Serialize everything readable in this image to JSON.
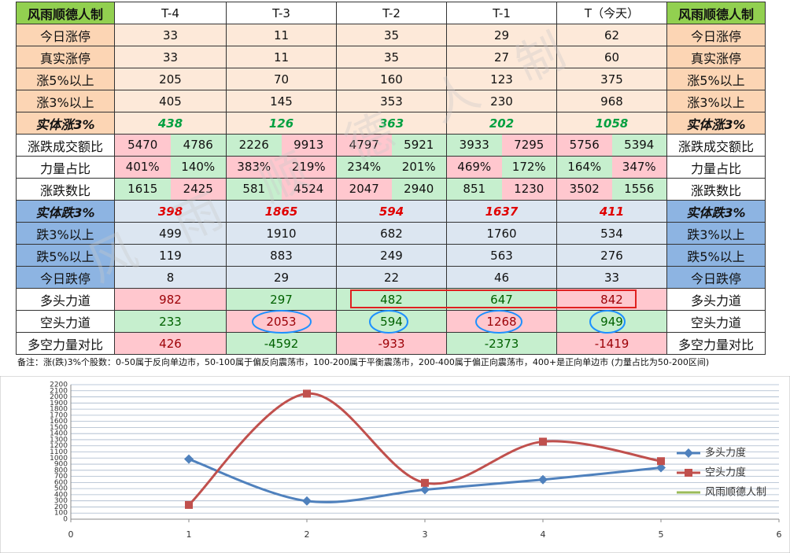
{
  "table": {
    "header": [
      "风雨顺德人制",
      "T-4",
      "T-3",
      "T-2",
      "T-1",
      "T（今天）",
      "风雨顺德人制"
    ],
    "rows": [
      {
        "label": "今日涨停",
        "cells": [
          "33",
          "11",
          "35",
          "29",
          "62"
        ]
      },
      {
        "label": "真实涨停",
        "cells": [
          "33",
          "11",
          "35",
          "27",
          "60"
        ]
      },
      {
        "label": "涨5%以上",
        "cells": [
          "205",
          "70",
          "160",
          "123",
          "375"
        ]
      },
      {
        "label": "涨3%以上",
        "cells": [
          "405",
          "145",
          "353",
          "230",
          "968"
        ]
      },
      {
        "label": "实体涨3%",
        "cells": [
          "438",
          "126",
          "363",
          "202",
          "1058"
        ]
      },
      {
        "label": "涨跌成交额比",
        "cells": [
          [
            "5470",
            "4786"
          ],
          [
            "2226",
            "9913"
          ],
          [
            "4797",
            "5921"
          ],
          [
            "3933",
            "7295"
          ],
          [
            "5756",
            "5394"
          ]
        ]
      },
      {
        "label": "力量占比",
        "cells": [
          [
            "401%",
            "140%"
          ],
          [
            "383%",
            "219%"
          ],
          [
            "234%",
            "201%"
          ],
          [
            "469%",
            "172%"
          ],
          [
            "164%",
            "347%"
          ]
        ]
      },
      {
        "label": "涨跌数比",
        "cells": [
          [
            "1615",
            "2425"
          ],
          [
            "581",
            "4524"
          ],
          [
            "2047",
            "2940"
          ],
          [
            "851",
            "1230"
          ],
          [
            "3502",
            "1556"
          ]
        ]
      },
      {
        "label": "实体跌3%",
        "cells": [
          "398",
          "1865",
          "594",
          "1637",
          "411"
        ]
      },
      {
        "label": "跌3%以上",
        "cells": [
          "499",
          "1910",
          "682",
          "1760",
          "534"
        ]
      },
      {
        "label": "跌5%以上",
        "cells": [
          "119",
          "883",
          "249",
          "563",
          "276"
        ]
      },
      {
        "label": "今日跌停",
        "cells": [
          "8",
          "29",
          "22",
          "46",
          "33"
        ]
      },
      {
        "label": "多头力道",
        "cells": [
          "982",
          "297",
          "482",
          "647",
          "842"
        ]
      },
      {
        "label": "空头力道",
        "cells": [
          "233",
          "2053",
          "594",
          "1268",
          "949"
        ]
      },
      {
        "label": "多空力量对比",
        "cells": [
          "426",
          "-4592",
          "-933",
          "-2373",
          "-1419"
        ]
      }
    ]
  },
  "note": "备注：涨(跌)3%个股数：0-50属于反向单边市，50-100属于偏反向震荡市，100-200属于平衡震荡市，200-400属于偏正向震荡市，400+是正向单边市 (力量占比为50-200区间)",
  "watermark": "风雨顺德人制",
  "chart_data": {
    "type": "line",
    "x": [
      1,
      2,
      3,
      4,
      5
    ],
    "series": [
      {
        "name": "多头力度",
        "color": "#4f81bd",
        "marker": "diamond",
        "values": [
          982,
          297,
          482,
          647,
          842
        ]
      },
      {
        "name": "空头力度",
        "color": "#c0504d",
        "marker": "square",
        "values": [
          233,
          2053,
          594,
          1268,
          949
        ]
      },
      {
        "name": "风雨顺德人制",
        "color": "#9bbb59",
        "marker": "none",
        "values": [
          null,
          null,
          null,
          null,
          null
        ]
      }
    ],
    "xlim": [
      0,
      6
    ],
    "xticks": [
      0,
      1,
      2,
      3,
      4,
      5,
      6
    ],
    "ylim": [
      0,
      2200
    ],
    "yticks": [
      0,
      100,
      200,
      300,
      400,
      500,
      600,
      700,
      800,
      900,
      1000,
      1100,
      1200,
      1300,
      1400,
      1500,
      1600,
      1700,
      1800,
      1900,
      2000,
      2100,
      2200
    ],
    "grid": true,
    "smooth": true,
    "legend": "right"
  }
}
